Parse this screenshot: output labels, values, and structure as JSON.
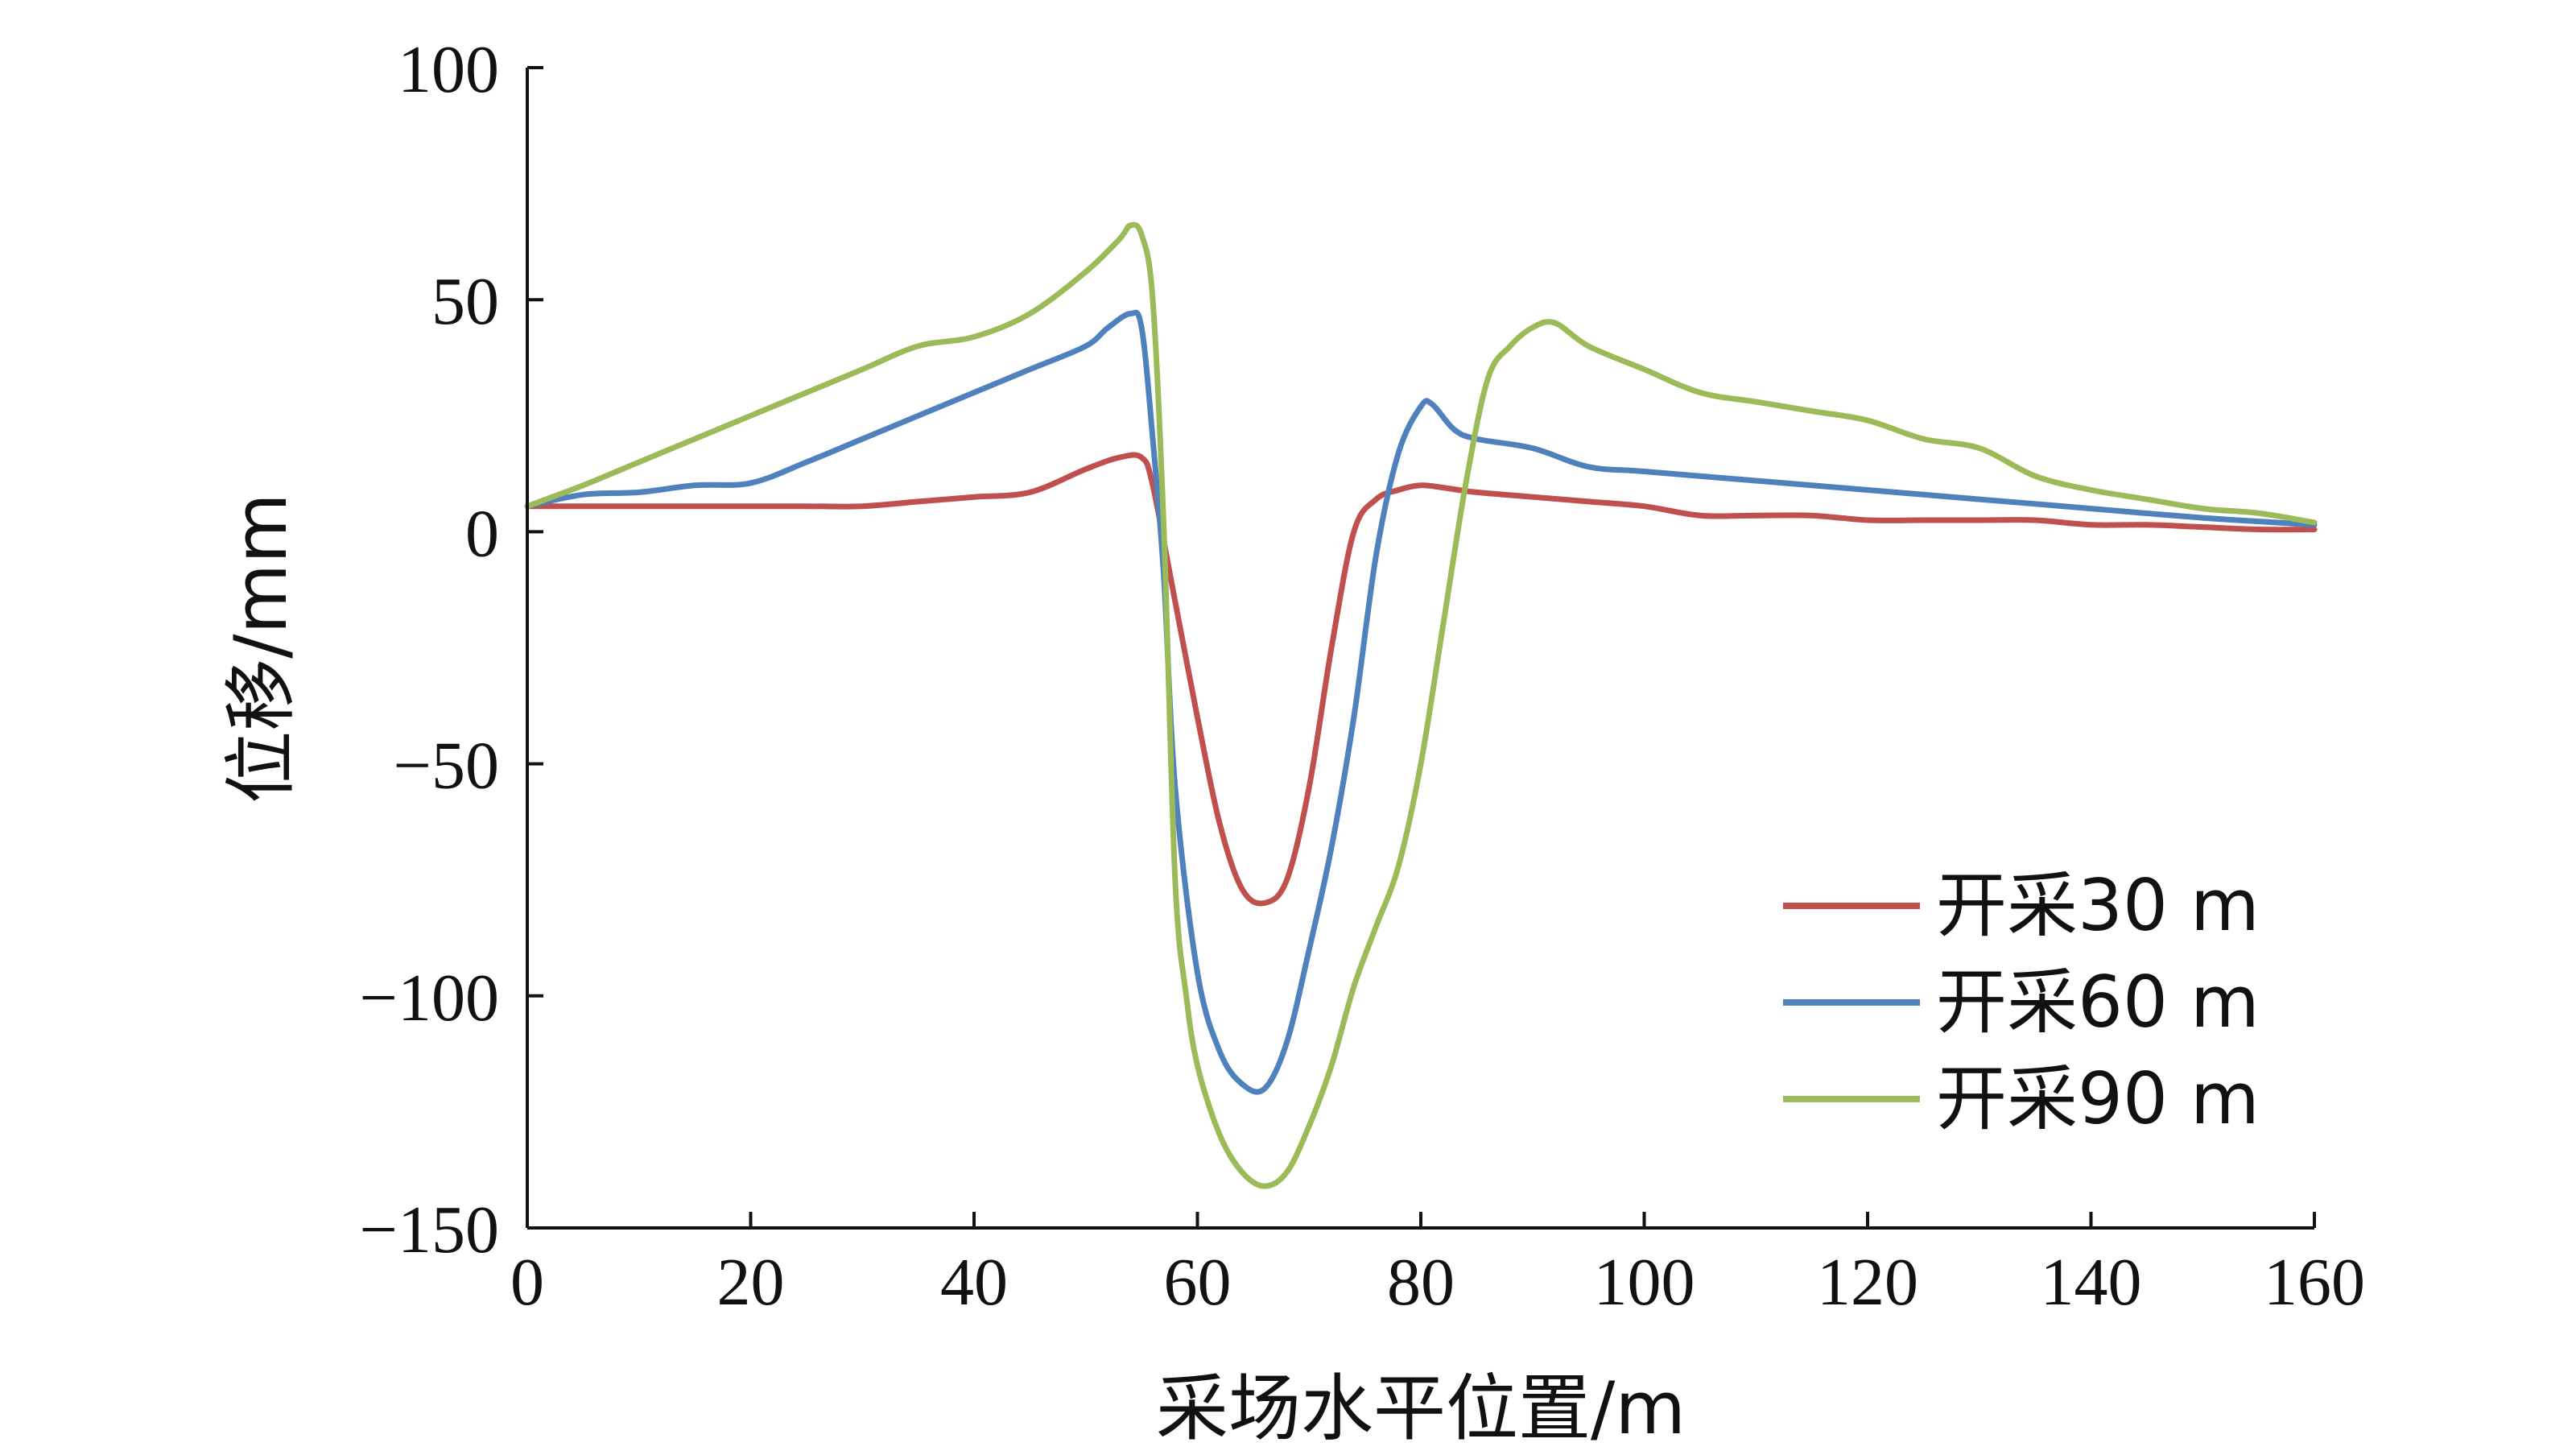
{
  "chart_data": {
    "type": "line",
    "title": "",
    "xlabel": "采场水平位置/m",
    "ylabel": "位移/mm",
    "xlim": [
      0,
      160
    ],
    "ylim": [
      -150,
      100
    ],
    "xticks": [
      0,
      20,
      40,
      60,
      80,
      100,
      120,
      140,
      160
    ],
    "yticks": [
      100,
      50,
      0,
      -50,
      -100,
      -150
    ],
    "xtick_labels": [
      "0",
      "20",
      "40",
      "60",
      "80",
      "100",
      "120",
      "140",
      "160"
    ],
    "ytick_labels": [
      "100",
      "50",
      "0",
      "−50",
      "−100",
      "−150"
    ],
    "grid": false,
    "legend_position": "bottom-right",
    "series": [
      {
        "name": "开采30 m",
        "color": "#c0504d",
        "x": [
          0,
          5,
          10,
          15,
          20,
          25,
          30,
          35,
          40,
          45,
          50,
          53,
          55,
          56,
          58,
          60,
          62,
          64,
          66,
          68,
          70,
          72,
          74,
          76,
          78,
          80,
          82,
          85,
          90,
          95,
          100,
          105,
          110,
          115,
          120,
          125,
          130,
          135,
          140,
          145,
          150,
          155,
          160
        ],
        "y": [
          5.5,
          5.5,
          5.5,
          5.5,
          5.5,
          5.5,
          5.5,
          6.5,
          7.5,
          8.5,
          13.5,
          16,
          16,
          10,
          -15,
          -40,
          -63,
          -77,
          -80,
          -75,
          -55,
          -25,
          0,
          7,
          9,
          10,
          9.5,
          8.5,
          7.5,
          6.5,
          5.5,
          3.5,
          3.5,
          3.5,
          2.5,
          2.5,
          2.5,
          2.5,
          1.5,
          1.5,
          1,
          0.5,
          0.5
        ]
      },
      {
        "name": "开采60 m",
        "color": "#4f81bd",
        "x": [
          0,
          5,
          10,
          15,
          20,
          25,
          30,
          35,
          40,
          45,
          50,
          52,
          54,
          55,
          56,
          57,
          58,
          60,
          62,
          64,
          66,
          68,
          70,
          72,
          74,
          76,
          78,
          80,
          81,
          83,
          85,
          90,
          95,
          100,
          110,
          120,
          130,
          140,
          150,
          160
        ],
        "y": [
          5.5,
          8,
          8.5,
          10,
          10.5,
          15,
          20,
          25,
          30,
          35,
          40,
          44,
          47,
          44,
          20,
          -10,
          -55,
          -95,
          -112,
          -119,
          -120,
          -110,
          -90,
          -68,
          -40,
          -5,
          17,
          27,
          27.5,
          22,
          20,
          18,
          14,
          13,
          11,
          9,
          7,
          5,
          3,
          1.5
        ]
      },
      {
        "name": "开采90 m",
        "color": "#9bbb59",
        "x": [
          0,
          5,
          10,
          15,
          20,
          25,
          30,
          35,
          40,
          45,
          50,
          53,
          54,
          55,
          56,
          57,
          58,
          59,
          60,
          62,
          64,
          66,
          68,
          70,
          72,
          74,
          76,
          78,
          80,
          82,
          84,
          86,
          88,
          90,
          92,
          95,
          100,
          105,
          110,
          115,
          120,
          125,
          130,
          135,
          140,
          145,
          150,
          155,
          160
        ],
        "y": [
          5.5,
          10,
          15,
          20,
          25,
          30,
          35,
          40,
          42,
          47,
          56,
          63,
          66,
          64,
          50,
          0,
          -75,
          -100,
          -115,
          -130,
          -138,
          -141,
          -138,
          -128,
          -115,
          -98,
          -85,
          -72,
          -50,
          -20,
          10,
          33,
          40,
          44,
          45,
          40,
          35,
          30,
          28,
          26,
          24,
          20,
          18,
          12,
          9,
          7,
          5,
          4,
          2
        ]
      }
    ]
  }
}
